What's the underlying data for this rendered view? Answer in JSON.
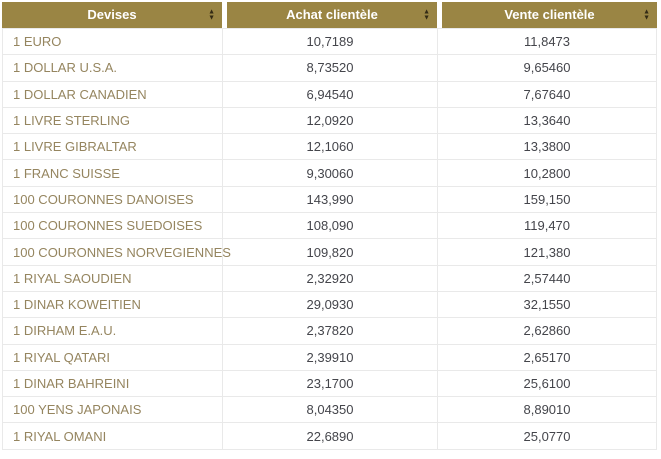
{
  "colors": {
    "header_bg": "#9a8544",
    "header_text": "#ffffff",
    "currency_text": "#95855f",
    "value_text": "#44454b",
    "border": "#e9e9e9",
    "sort_icon": "#332a15"
  },
  "icons": {
    "sort_up": "▲",
    "sort_down": "▼"
  },
  "table": {
    "columns": [
      {
        "label": "Devises"
      },
      {
        "label": "Achat clientèle"
      },
      {
        "label": "Vente clientèle"
      }
    ],
    "rows": [
      {
        "devise": "1 EURO",
        "achat": "10,7189",
        "vente": "11,8473"
      },
      {
        "devise": "1 DOLLAR U.S.A.",
        "achat": "8,73520",
        "vente": "9,65460"
      },
      {
        "devise": "1 DOLLAR CANADIEN",
        "achat": "6,94540",
        "vente": "7,67640"
      },
      {
        "devise": "1 LIVRE STERLING",
        "achat": "12,0920",
        "vente": "13,3640"
      },
      {
        "devise": "1 LIVRE GIBRALTAR",
        "achat": "12,1060",
        "vente": "13,3800"
      },
      {
        "devise": "1 FRANC SUISSE",
        "achat": "9,30060",
        "vente": "10,2800"
      },
      {
        "devise": "100 COURONNES DANOISES",
        "achat": "143,990",
        "vente": "159,150"
      },
      {
        "devise": "100 COURONNES SUEDOISES",
        "achat": "108,090",
        "vente": "119,470"
      },
      {
        "devise": "100 COURONNES NORVEGIENNES",
        "achat": "109,820",
        "vente": "121,380"
      },
      {
        "devise": "1 RIYAL SAOUDIEN",
        "achat": "2,32920",
        "vente": "2,57440"
      },
      {
        "devise": "1 DINAR KOWEITIEN",
        "achat": "29,0930",
        "vente": "32,1550"
      },
      {
        "devise": "1 DIRHAM E.A.U.",
        "achat": "2,37820",
        "vente": "2,62860"
      },
      {
        "devise": "1 RIYAL QATARI",
        "achat": "2,39910",
        "vente": "2,65170"
      },
      {
        "devise": "1 DINAR BAHREINI",
        "achat": "23,1700",
        "vente": "25,6100"
      },
      {
        "devise": "100 YENS JAPONAIS",
        "achat": "8,04350",
        "vente": "8,89010"
      },
      {
        "devise": "1 RIYAL OMANI",
        "achat": "22,6890",
        "vente": "25,0770"
      }
    ]
  }
}
